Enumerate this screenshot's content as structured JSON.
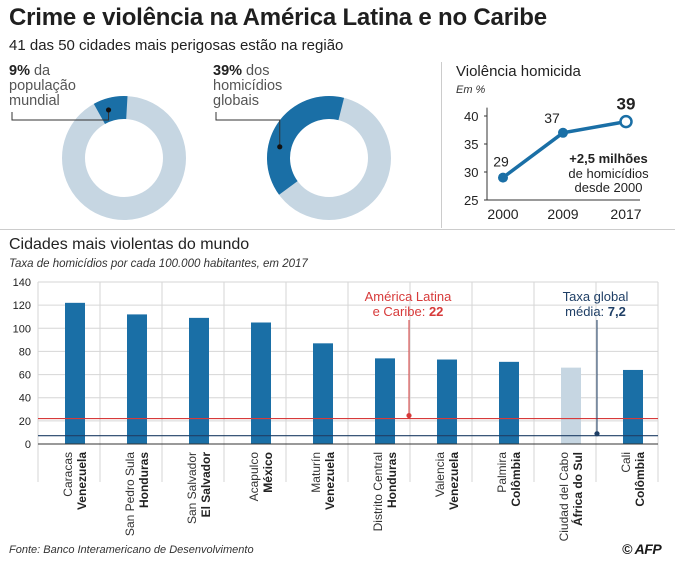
{
  "title": "Crime e violência na América Latina e no Caribe",
  "subtitle": "41 das 50 cidades mais perigosas estão na região",
  "colors": {
    "accent": "#1a6fa6",
    "light": "#c6d6e2",
    "red": "#d73a3a",
    "navy": "#1f3f66"
  },
  "donuts": [
    {
      "pct_label": "9%",
      "text_line1": " da",
      "text_line2": "população",
      "text_line3": "mundial",
      "value": 9
    },
    {
      "pct_label": "39%",
      "text_line1": " dos",
      "text_line2": "homicídios",
      "text_line3": "globais",
      "value": 39
    }
  ],
  "line_chart": {
    "title": "Violência homicida",
    "unit": "Em %",
    "annotation": [
      "+2,5 milhões",
      "de homicídios",
      "desde 2000"
    ],
    "chart_data": {
      "type": "line",
      "x": [
        "2000",
        "2009",
        "2017"
      ],
      "values": [
        29,
        37,
        39
      ],
      "value_labels": [
        "29",
        "37",
        "39"
      ],
      "yticks": [
        25,
        30,
        35,
        40
      ],
      "ylim": [
        25,
        41
      ]
    }
  },
  "bar_chart": {
    "title": "Cidades mais violentas do mundo",
    "note": "Taxa de homicídios por cada 100.000 habitantes, em 2017",
    "ref_latam": [
      "América Latina",
      "e Caribe: ",
      "22"
    ],
    "ref_global": [
      "Taxa global",
      "média: ",
      "7,2"
    ],
    "chart_data": {
      "type": "bar",
      "categories": [
        {
          "city": "Caracas",
          "country": "Venezuela"
        },
        {
          "city": "San Pedro Sula",
          "country": "Honduras"
        },
        {
          "city": "San Salvador",
          "country": "El Salvador"
        },
        {
          "city": "Acapulco",
          "country": "México"
        },
        {
          "city": "Maturín",
          "country": "Venezuela"
        },
        {
          "city": "Distrito Central",
          "country": "Honduras"
        },
        {
          "city": "Valencia",
          "country": "Venezuela"
        },
        {
          "city": "Palmira",
          "country": "Colômbia"
        },
        {
          "city": "Ciudad del Cabo",
          "country": "África do Sul"
        },
        {
          "city": "Cali",
          "country": "Colômbia"
        }
      ],
      "values": [
        122,
        112,
        109,
        105,
        87,
        74,
        73,
        71,
        66,
        64
      ],
      "highlight": [
        false,
        false,
        false,
        false,
        false,
        false,
        false,
        false,
        true,
        false
      ],
      "yticks": [
        0,
        20,
        40,
        60,
        80,
        100,
        120,
        140
      ],
      "ylim": [
        0,
        140
      ],
      "reference_lines": [
        22,
        7.2
      ]
    }
  },
  "footer": "Fonte: Banco Interamericano de Desenvolvimento",
  "logo": "© AFP"
}
